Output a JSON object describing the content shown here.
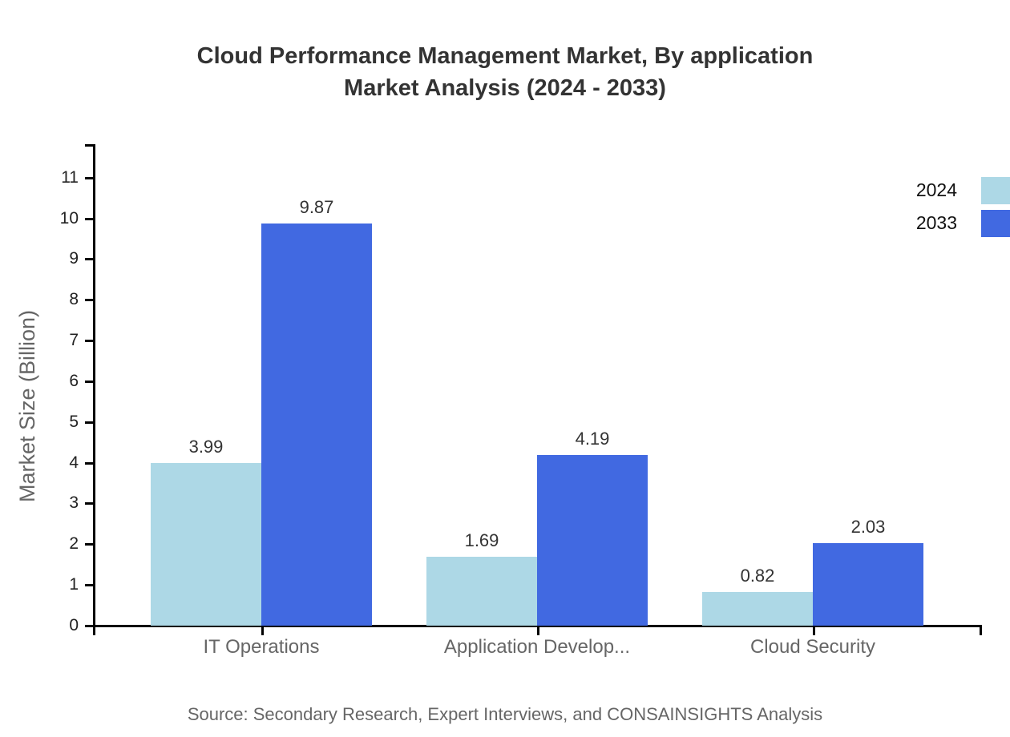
{
  "title": {
    "line1": "Cloud Performance Management Market, By application",
    "line2": "Market Analysis (2024 - 2033)"
  },
  "source": "Source: Secondary Research, Expert Interviews, and CONSAINSIGHTS Analysis",
  "colors": {
    "series_2024": "#ADD8E6",
    "series_2033": "#4169E1",
    "axis": "#000000",
    "title_text": "#333333",
    "value_text": "#333333",
    "tick_text": "#222222",
    "category_text": "#666666",
    "muted_text": "#666666"
  },
  "chart_data": {
    "type": "bar",
    "categories": [
      "IT Operations",
      "Application Develop...",
      "Cloud Security"
    ],
    "series": [
      {
        "name": "2024",
        "color": "#ADD8E6",
        "values": [
          3.99,
          1.69,
          0.82
        ]
      },
      {
        "name": "2033",
        "color": "#4169E1",
        "values": [
          9.87,
          4.19,
          2.03
        ]
      }
    ],
    "title": "Cloud Performance Management Market, By application Market Analysis (2024 - 2033)",
    "xlabel": "",
    "ylabel": "Market Size (Billion)",
    "ylim": [
      0,
      11
    ],
    "y_ticks": [
      0,
      1,
      2,
      3,
      4,
      5,
      6,
      7,
      8,
      9,
      10,
      11
    ],
    "grid": false,
    "legend_position": "top-right",
    "value_labels": true
  }
}
